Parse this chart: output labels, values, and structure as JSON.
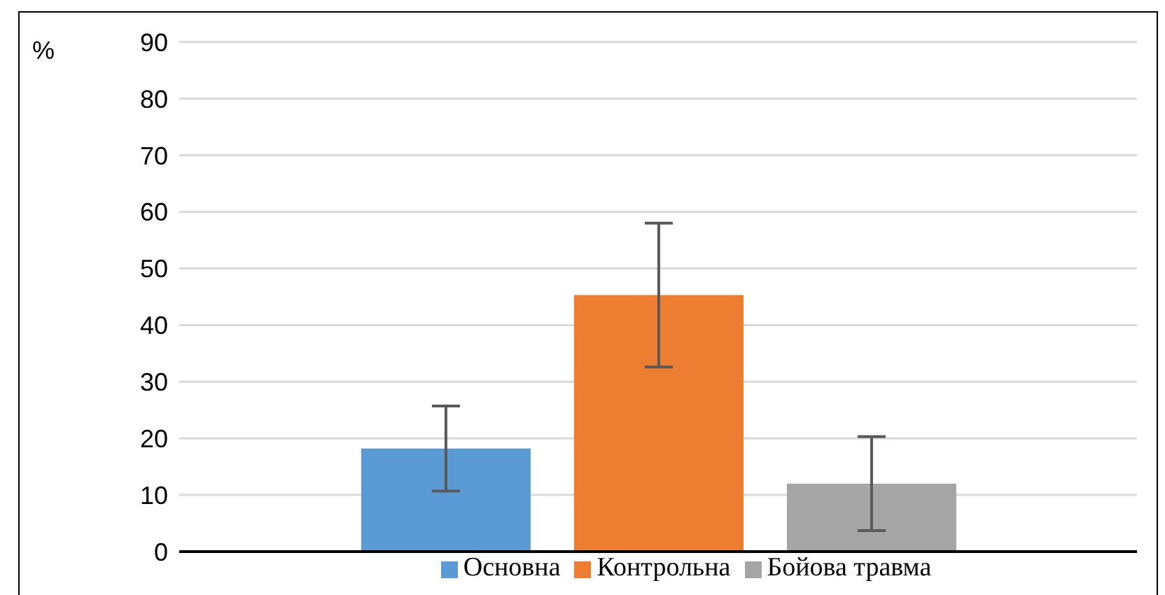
{
  "chart_data": {
    "type": "bar",
    "ylabel": "%",
    "categories": [
      null
    ],
    "series": [
      {
        "name": "Основна",
        "color": "#5b9bd5",
        "values": [
          18.2
        ],
        "errors": [
          7.5
        ]
      },
      {
        "name": "Контрольна",
        "color": "#ed7d31",
        "values": [
          45.3
        ],
        "errors": [
          12.7
        ]
      },
      {
        "name": "Бойова травма",
        "color": "#a5a5a5",
        "values": [
          12.0
        ],
        "errors": [
          8.3
        ]
      }
    ],
    "ylim": [
      0,
      90
    ],
    "yticks": [
      0,
      10,
      20,
      30,
      40,
      50,
      60,
      70,
      80,
      90
    ],
    "grid": "y",
    "legend": "bottom"
  }
}
